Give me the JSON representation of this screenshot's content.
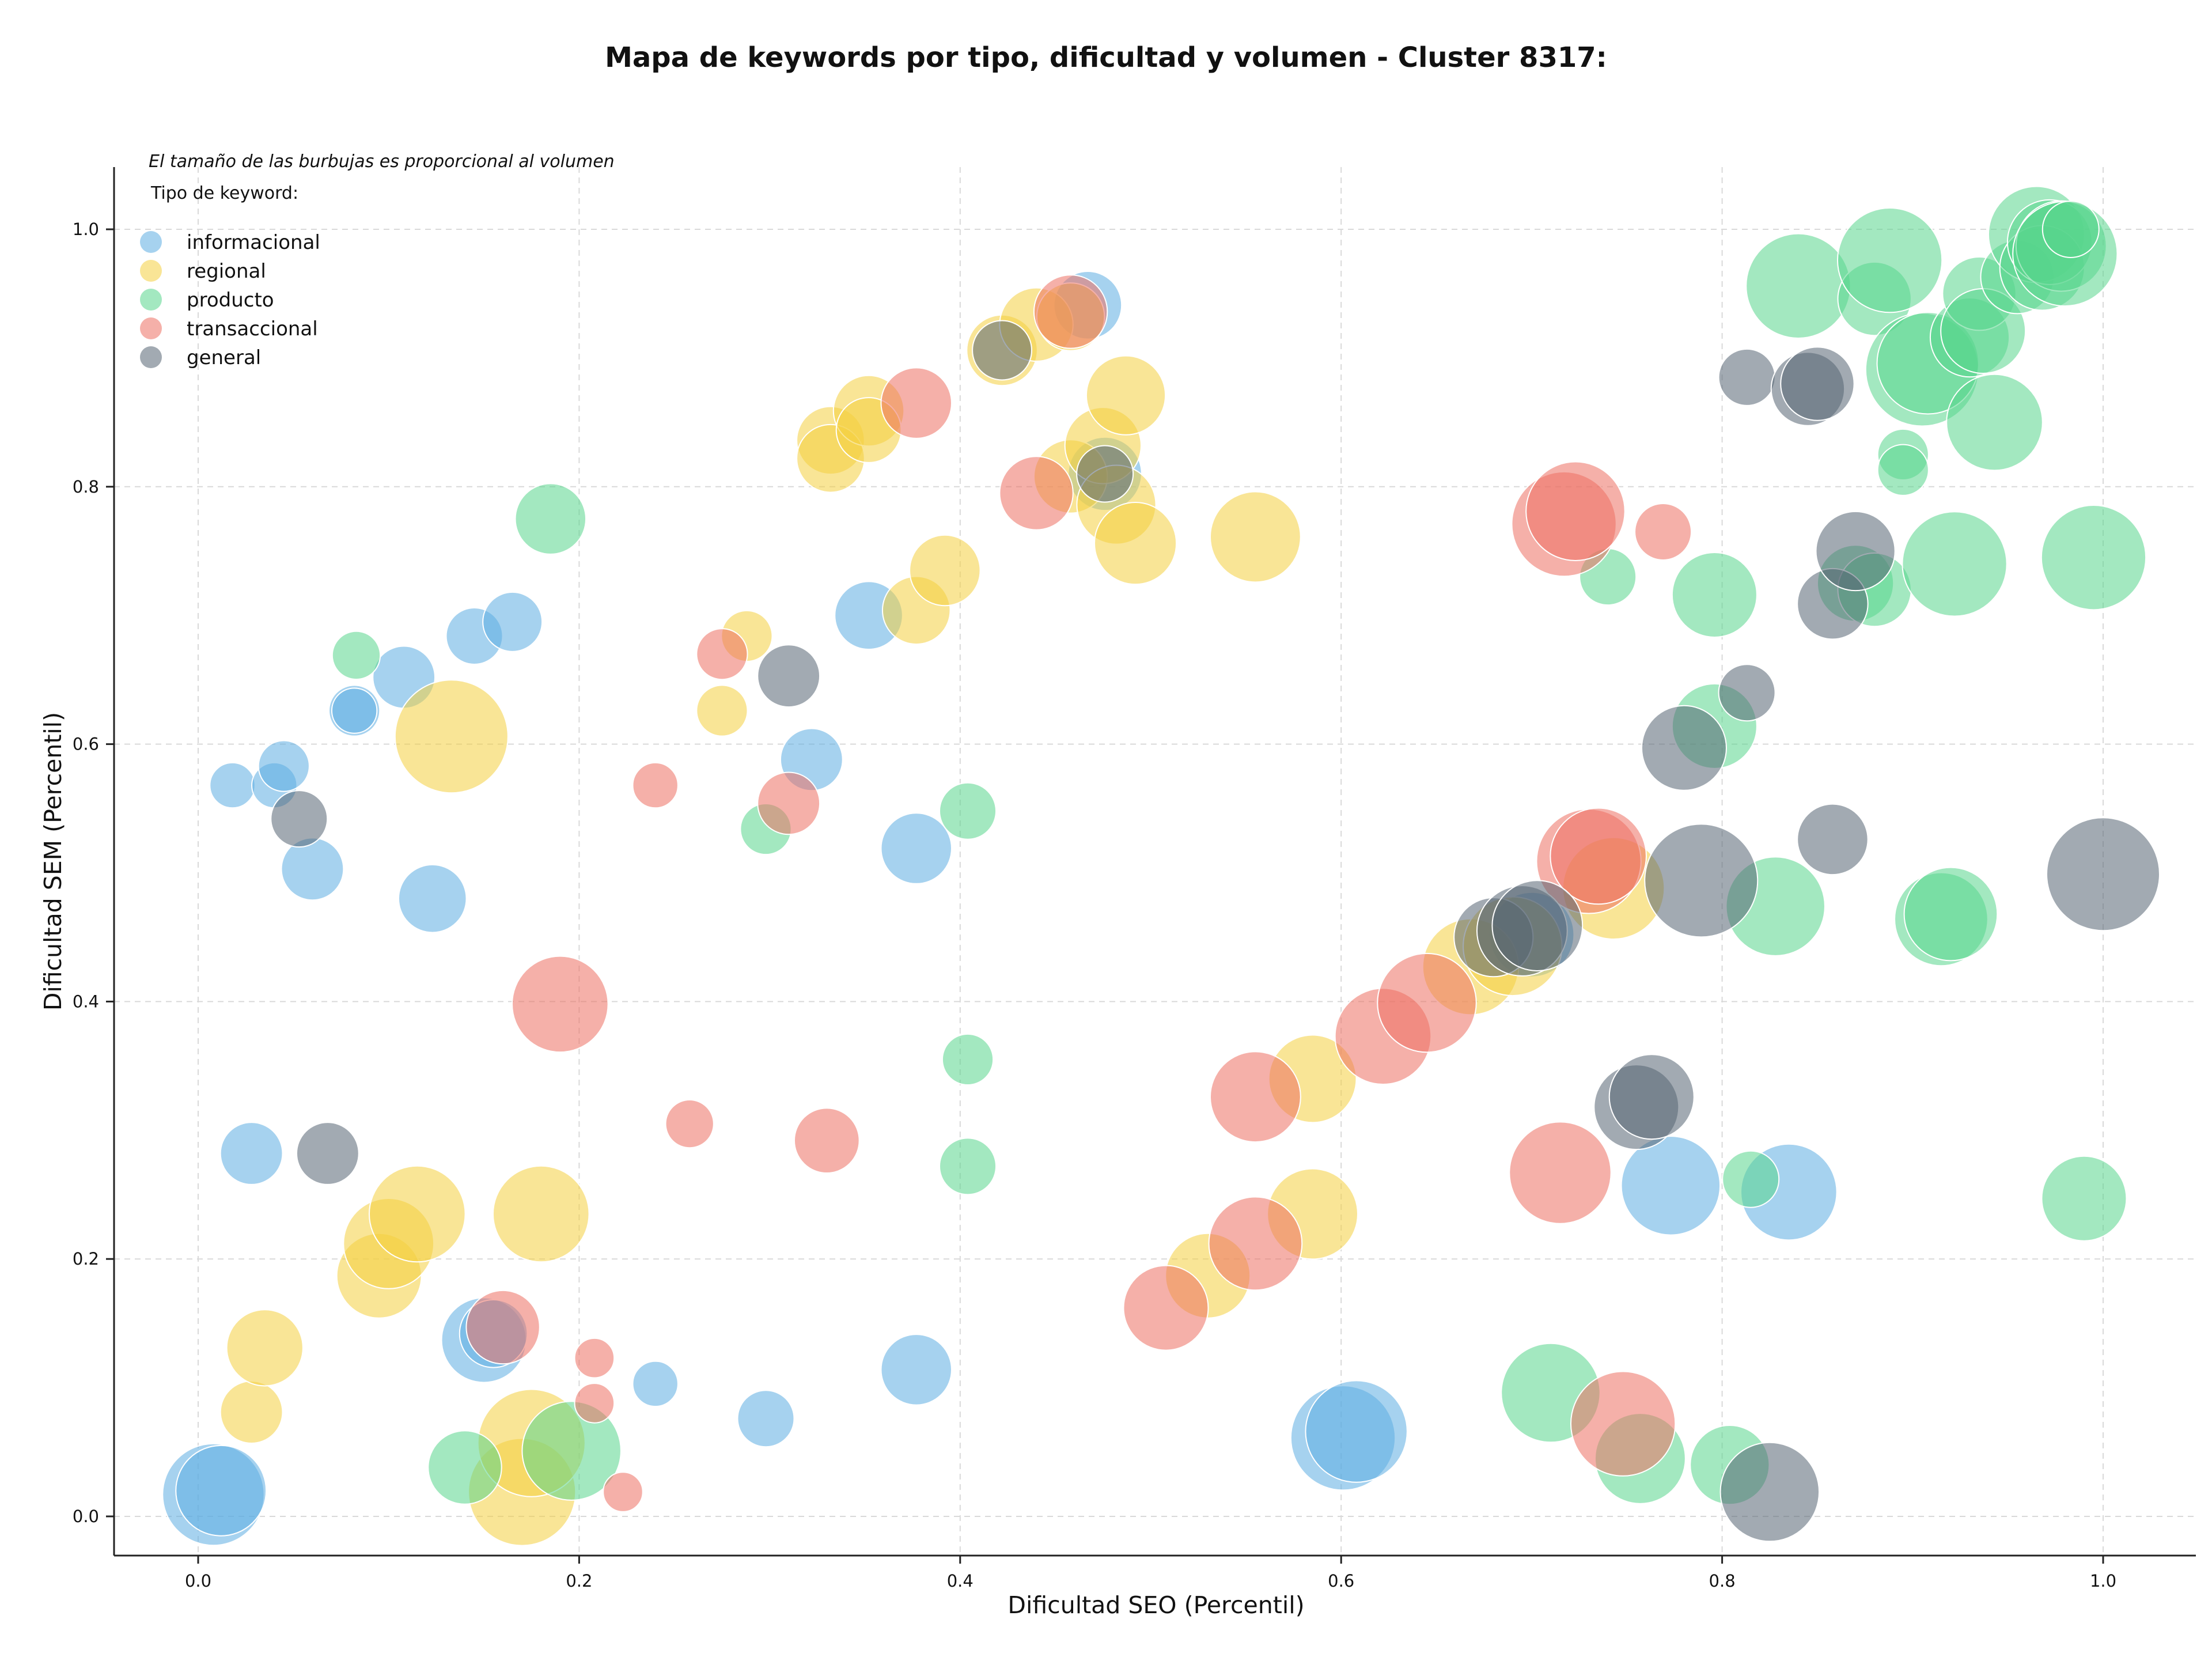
{
  "chart_data": {
    "type": "scatter",
    "title": "Mapa de keywords por tipo, dificultad y volumen - Cluster 8317:",
    "xlabel": "Dificultad SEO (Percentil)",
    "ylabel": "Dificultad SEM (Percentil)",
    "xlim": [
      -0.045,
      1.05
    ],
    "ylim": [
      -0.03,
      1.05
    ],
    "xticks": [
      "0.0",
      "0.2",
      "0.4",
      "0.6",
      "0.8",
      "1.0"
    ],
    "yticks": [
      "0.0",
      "0.2",
      "0.4",
      "0.6",
      "0.8",
      "1.0"
    ],
    "grid": true,
    "note": "El tamaño de las burbujas es proporcional al volumen",
    "legend_title": "Tipo de keyword:",
    "legend_position": "top-left",
    "series": [
      {
        "name": "informacional",
        "color": "#5DADE2",
        "points": [
          [
            0.008,
            0.017,
            36
          ],
          [
            0.012,
            0.02,
            32
          ],
          [
            0.018,
            0.568,
            16
          ],
          [
            0.04,
            0.568,
            16
          ],
          [
            0.045,
            0.583,
            18
          ],
          [
            0.06,
            0.503,
            22
          ],
          [
            0.028,
            0.282,
            22
          ],
          [
            0.082,
            0.626,
            18
          ],
          [
            0.082,
            0.626,
            16
          ],
          [
            0.108,
            0.652,
            22
          ],
          [
            0.123,
            0.48,
            24
          ],
          [
            0.145,
            0.684,
            20
          ],
          [
            0.165,
            0.695,
            21
          ],
          [
            0.15,
            0.137,
            30
          ],
          [
            0.155,
            0.142,
            24
          ],
          [
            0.24,
            0.103,
            16
          ],
          [
            0.298,
            0.076,
            20
          ],
          [
            0.322,
            0.588,
            22
          ],
          [
            0.352,
            0.7,
            24
          ],
          [
            0.377,
            0.519,
            25
          ],
          [
            0.377,
            0.114,
            25
          ],
          [
            0.467,
            0.941,
            24
          ],
          [
            0.476,
            0.81,
            26
          ],
          [
            0.601,
            0.061,
            37
          ],
          [
            0.608,
            0.066,
            36
          ],
          [
            0.773,
            0.257,
            35
          ],
          [
            0.835,
            0.252,
            34
          ],
          [
            0.7,
            0.452,
            30
          ]
        ]
      },
      {
        "name": "regional",
        "color": "#F4D03F",
        "points": [
          [
            0.028,
            0.081,
            22
          ],
          [
            0.035,
            0.131,
            27
          ],
          [
            0.095,
            0.187,
            30
          ],
          [
            0.1,
            0.212,
            32
          ],
          [
            0.115,
            0.235,
            34
          ],
          [
            0.133,
            0.606,
            40
          ],
          [
            0.17,
            0.019,
            38
          ],
          [
            0.175,
            0.057,
            38
          ],
          [
            0.18,
            0.235,
            34
          ],
          [
            0.275,
            0.626,
            18
          ],
          [
            0.288,
            0.684,
            18
          ],
          [
            0.332,
            0.836,
            24
          ],
          [
            0.332,
            0.822,
            24
          ],
          [
            0.352,
            0.859,
            25
          ],
          [
            0.352,
            0.844,
            23
          ],
          [
            0.377,
            0.704,
            24
          ],
          [
            0.392,
            0.735,
            25
          ],
          [
            0.422,
            0.906,
            25
          ],
          [
            0.44,
            0.926,
            26
          ],
          [
            0.458,
            0.932,
            24
          ],
          [
            0.458,
            0.808,
            26
          ],
          [
            0.475,
            0.832,
            27
          ],
          [
            0.482,
            0.786,
            28
          ],
          [
            0.487,
            0.871,
            28
          ],
          [
            0.492,
            0.756,
            29
          ],
          [
            0.555,
            0.761,
            32
          ],
          [
            0.53,
            0.187,
            30
          ],
          [
            0.585,
            0.34,
            31
          ],
          [
            0.585,
            0.235,
            32
          ],
          [
            0.668,
            0.427,
            34
          ],
          [
            0.69,
            0.443,
            35
          ],
          [
            0.743,
            0.488,
            36
          ]
        ]
      },
      {
        "name": "producto",
        "color": "#58D68D",
        "points": [
          [
            0.083,
            0.669,
            17
          ],
          [
            0.14,
            0.038,
            26
          ],
          [
            0.185,
            0.775,
            25
          ],
          [
            0.196,
            0.051,
            35
          ],
          [
            0.298,
            0.534,
            18
          ],
          [
            0.404,
            0.548,
            20
          ],
          [
            0.404,
            0.355,
            18
          ],
          [
            0.404,
            0.272,
            20
          ],
          [
            0.71,
            0.096,
            35
          ],
          [
            0.74,
            0.73,
            20
          ],
          [
            0.757,
            0.045,
            32
          ],
          [
            0.796,
            0.716,
            30
          ],
          [
            0.796,
            0.614,
            30
          ],
          [
            0.804,
            0.04,
            28
          ],
          [
            0.815,
            0.262,
            20
          ],
          [
            0.828,
            0.474,
            35
          ],
          [
            0.84,
            0.956,
            37
          ],
          [
            0.87,
            0.725,
            27
          ],
          [
            0.88,
            0.72,
            26
          ],
          [
            0.88,
            0.946,
            26
          ],
          [
            0.888,
            0.976,
            37
          ],
          [
            0.895,
            0.825,
            18
          ],
          [
            0.895,
            0.813,
            18
          ],
          [
            0.905,
            0.891,
            40
          ],
          [
            0.908,
            0.896,
            36
          ],
          [
            0.915,
            0.464,
            33
          ],
          [
            0.92,
            0.468,
            33
          ],
          [
            0.922,
            0.74,
            37
          ],
          [
            0.93,
            0.916,
            28
          ],
          [
            0.935,
            0.95,
            26
          ],
          [
            0.937,
            0.921,
            30
          ],
          [
            0.943,
            0.85,
            34
          ],
          [
            0.955,
            0.963,
            26
          ],
          [
            0.965,
            0.996,
            34
          ],
          [
            0.968,
            0.97,
            30
          ],
          [
            0.972,
            0.99,
            30
          ],
          [
            0.978,
            0.987,
            32
          ],
          [
            0.98,
            0.981,
            37
          ],
          [
            0.983,
            1.0,
            20
          ],
          [
            0.99,
            0.247,
            30
          ],
          [
            0.995,
            0.745,
            37
          ]
        ]
      },
      {
        "name": "transaccional",
        "color": "#EC7063",
        "points": [
          [
            0.16,
            0.147,
            26
          ],
          [
            0.19,
            0.398,
            34
          ],
          [
            0.208,
            0.123,
            14
          ],
          [
            0.208,
            0.088,
            14
          ],
          [
            0.223,
            0.019,
            14
          ],
          [
            0.24,
            0.568,
            16
          ],
          [
            0.258,
            0.305,
            17
          ],
          [
            0.275,
            0.67,
            18
          ],
          [
            0.31,
            0.554,
            22
          ],
          [
            0.33,
            0.292,
            23
          ],
          [
            0.377,
            0.865,
            25
          ],
          [
            0.44,
            0.795,
            26
          ],
          [
            0.458,
            0.936,
            26
          ],
          [
            0.508,
            0.162,
            30
          ],
          [
            0.555,
            0.326,
            32
          ],
          [
            0.555,
            0.212,
            33
          ],
          [
            0.622,
            0.373,
            34
          ],
          [
            0.645,
            0.399,
            35
          ],
          [
            0.715,
            0.267,
            36
          ],
          [
            0.717,
            0.771,
            37
          ],
          [
            0.723,
            0.781,
            35
          ],
          [
            0.73,
            0.509,
            37
          ],
          [
            0.735,
            0.513,
            34
          ],
          [
            0.748,
            0.072,
            37
          ],
          [
            0.769,
            0.765,
            20
          ]
        ]
      },
      {
        "name": "general",
        "color": "#566573",
        "points": [
          [
            0.053,
            0.542,
            20
          ],
          [
            0.068,
            0.282,
            22
          ],
          [
            0.31,
            0.653,
            22
          ],
          [
            0.422,
            0.906,
            21
          ],
          [
            0.476,
            0.81,
            20
          ],
          [
            0.68,
            0.45,
            28
          ],
          [
            0.695,
            0.455,
            32
          ],
          [
            0.703,
            0.459,
            32
          ],
          [
            0.755,
            0.318,
            30
          ],
          [
            0.763,
            0.326,
            30
          ],
          [
            0.78,
            0.597,
            30
          ],
          [
            0.789,
            0.494,
            40
          ],
          [
            0.813,
            0.885,
            20
          ],
          [
            0.813,
            0.64,
            20
          ],
          [
            0.825,
            0.019,
            35
          ],
          [
            0.845,
            0.876,
            26
          ],
          [
            0.85,
            0.88,
            26
          ],
          [
            0.858,
            0.709,
            25
          ],
          [
            0.858,
            0.526,
            25
          ],
          [
            0.87,
            0.75,
            28
          ],
          [
            1.0,
            0.499,
            40
          ]
        ]
      }
    ]
  }
}
